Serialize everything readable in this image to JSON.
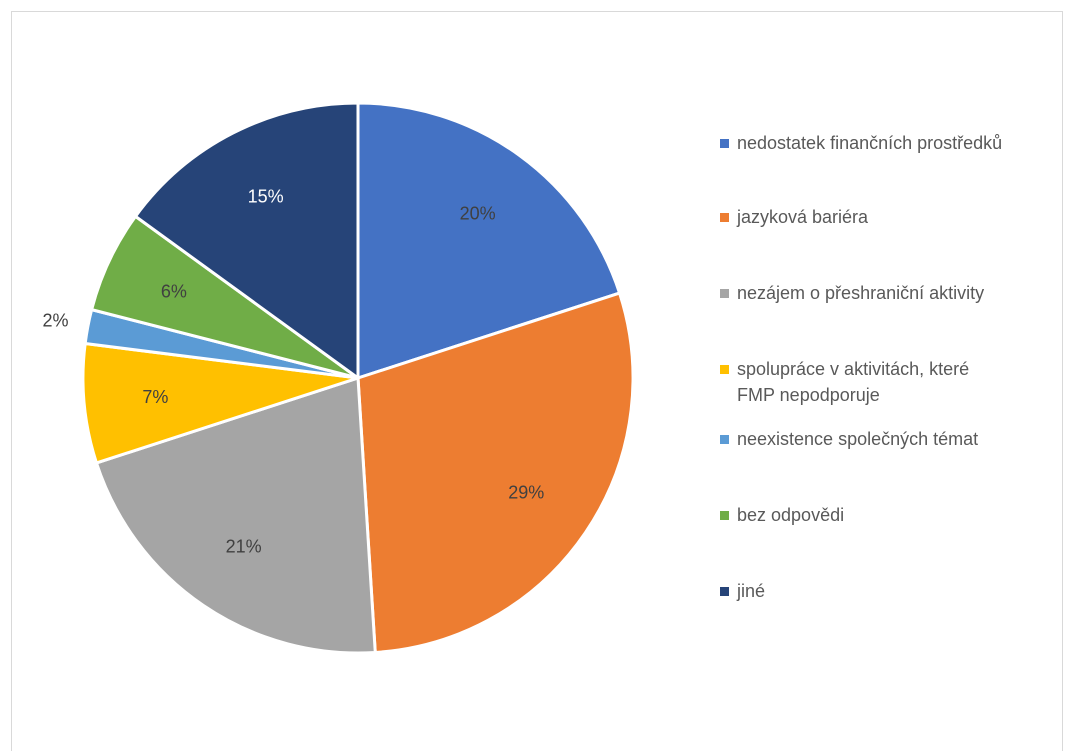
{
  "chart_data": {
    "type": "pie",
    "values": [
      20,
      29,
      21,
      7,
      2,
      6,
      15
    ],
    "labels": [
      "20%",
      "29%",
      "21%",
      "7%",
      "2%",
      "6%",
      "15%"
    ],
    "categories": [
      "nedostatek finančních prostředků",
      "jazyková bariéra",
      "nezájem o přeshraniční aktivity",
      "spolupráce v aktivitách, které\nFMP nepodporuje",
      "neexistence společných témat",
      "bez odpovědi",
      "jiné"
    ],
    "colors": [
      "#4472c4",
      "#ed7d31",
      "#a5a5a5",
      "#ffc000",
      "#5b9bd5",
      "#70ad47",
      "#264478"
    ],
    "label_colors": [
      "#404040",
      "#404040",
      "#404040",
      "#404040",
      "#404040",
      "#404040",
      "#ffffff"
    ],
    "legend_position": "right",
    "start_angle": "12 o'clock",
    "direction": "clockwise"
  }
}
